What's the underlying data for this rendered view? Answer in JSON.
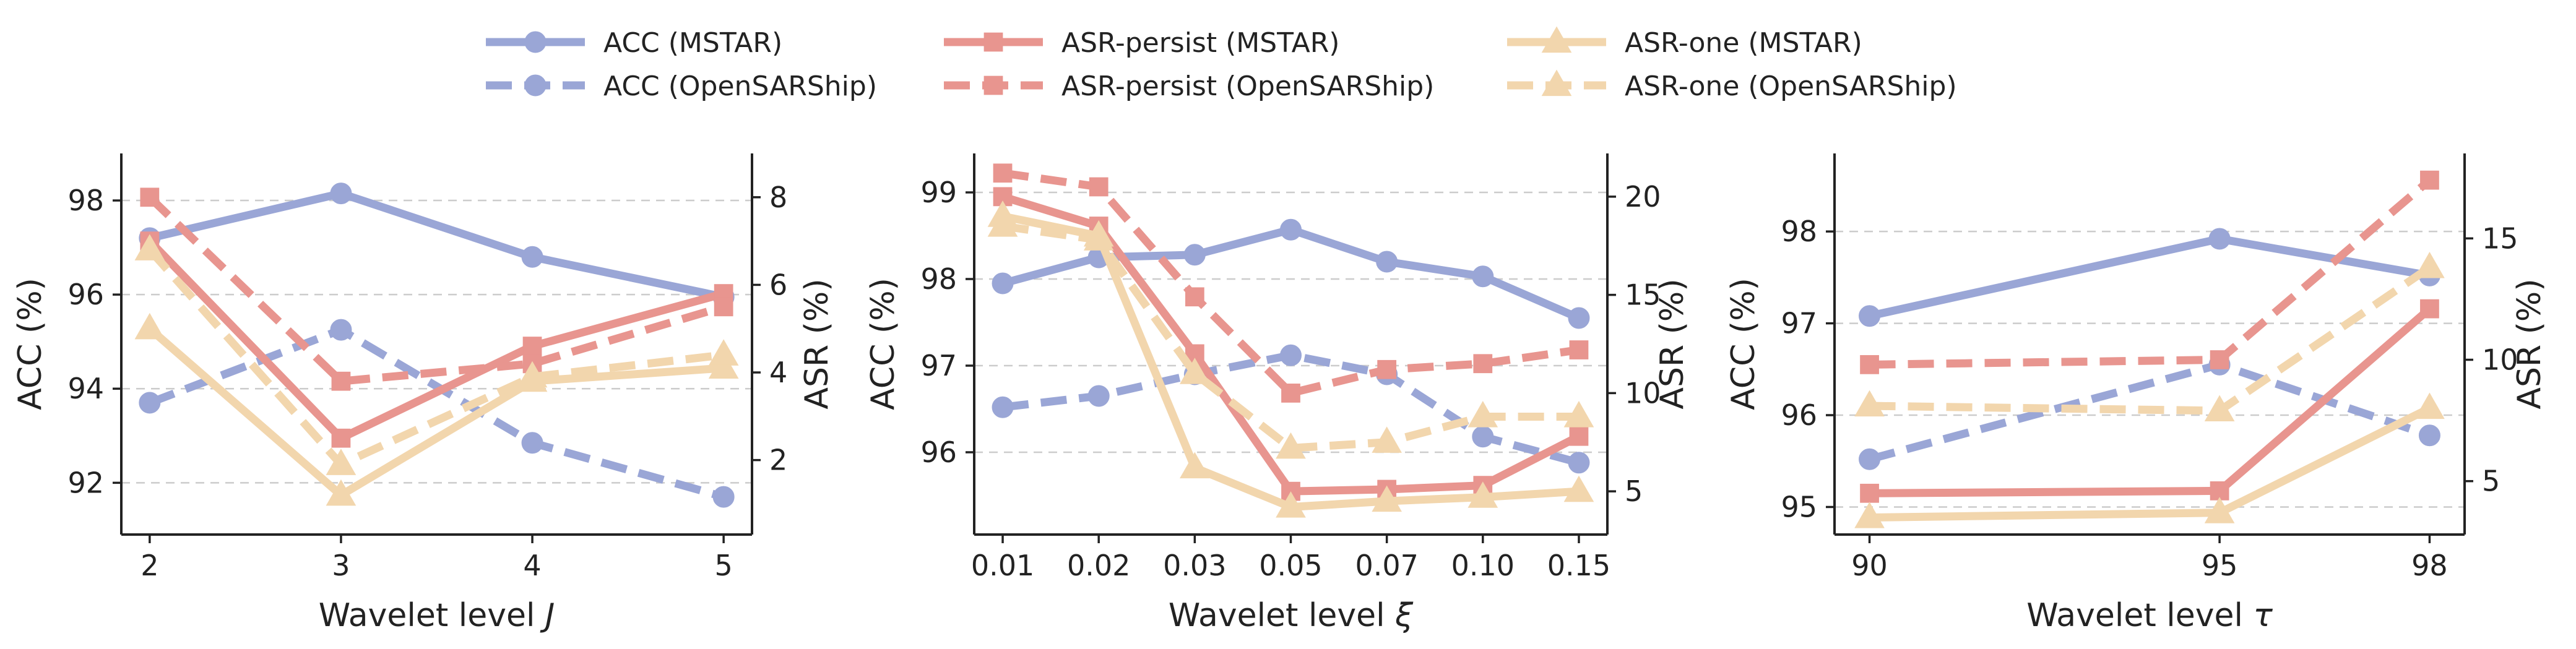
{
  "legend": {
    "entries": [
      {
        "key": "acc_mstar",
        "label": "ACC (MSTAR)",
        "color": "#9aa6d6",
        "dash": false,
        "marker": "circle"
      },
      {
        "key": "acc_open",
        "label": "ACC (OpenSARShip)",
        "color": "#9aa6d6",
        "dash": true,
        "marker": "circle"
      },
      {
        "key": "asrp_mstar",
        "label": "ASR-persist (MSTAR)",
        "color": "#e8958f",
        "dash": false,
        "marker": "square"
      },
      {
        "key": "asrp_open",
        "label": "ASR-persist (OpenSARShip)",
        "color": "#e8958f",
        "dash": true,
        "marker": "square"
      },
      {
        "key": "asro_mstar",
        "label": "ASR-one (MSTAR)",
        "color": "#f2d6ad",
        "dash": false,
        "marker": "triangle"
      },
      {
        "key": "asro_open",
        "label": "ASR-one (OpenSARShip)",
        "color": "#f2d6ad",
        "dash": true,
        "marker": "triangle"
      }
    ]
  },
  "chart_data": [
    {
      "type": "line",
      "xlabel": "Wavelet level",
      "xsymbol": "J",
      "ylabel": "ACC (%)",
      "y2label": "ASR (%)",
      "categories": [
        "2",
        "3",
        "4",
        "5"
      ],
      "ylim": [
        90.9,
        99.0
      ],
      "yticks": [
        92,
        94,
        96,
        98
      ],
      "y2lim": [
        0.3,
        9.0
      ],
      "y2ticks": [
        2,
        4,
        6,
        8
      ],
      "grid": true,
      "series": [
        {
          "key": "acc_mstar",
          "axis": "left",
          "values": [
            97.2,
            98.15,
            96.8,
            95.95
          ]
        },
        {
          "key": "acc_open",
          "axis": "left",
          "values": [
            93.7,
            95.25,
            92.85,
            91.7
          ]
        },
        {
          "key": "asrp_mstar",
          "axis": "right",
          "values": [
            7.0,
            2.5,
            4.6,
            5.8
          ]
        },
        {
          "key": "asrp_open",
          "axis": "right",
          "values": [
            8.0,
            3.8,
            4.2,
            5.5
          ]
        },
        {
          "key": "asro_mstar",
          "axis": "right",
          "values": [
            5.0,
            1.2,
            3.8,
            4.1
          ]
        },
        {
          "key": "asro_open",
          "axis": "right",
          "values": [
            6.8,
            1.9,
            3.9,
            4.4
          ]
        }
      ]
    },
    {
      "type": "line",
      "xlabel": "Wavelet level",
      "xsymbol": "ξ",
      "ylabel": "ACC (%)",
      "y2label": "ASR (%)",
      "categories": [
        "0.01",
        "0.02",
        "0.03",
        "0.05",
        "0.07",
        "0.10",
        "0.15"
      ],
      "ylim": [
        95.05,
        99.45
      ],
      "yticks": [
        95,
        96,
        97,
        98,
        99
      ],
      "y2lim": [
        2.8,
        22.2
      ],
      "y2ticks": [
        5,
        10,
        15,
        20
      ],
      "grid": true,
      "series": [
        {
          "key": "acc_mstar",
          "axis": "left",
          "values": [
            97.95,
            98.25,
            98.28,
            98.57,
            98.2,
            98.03,
            97.55
          ]
        },
        {
          "key": "acc_open",
          "axis": "left",
          "values": [
            96.52,
            96.65,
            96.9,
            97.12,
            96.9,
            96.18,
            95.88
          ]
        },
        {
          "key": "asrp_mstar",
          "axis": "right",
          "values": [
            20.0,
            18.5,
            12.0,
            5.0,
            5.1,
            5.3,
            7.8
          ]
        },
        {
          "key": "asrp_open",
          "axis": "right",
          "values": [
            21.2,
            20.5,
            14.9,
            10.0,
            11.2,
            11.5,
            12.2
          ]
        },
        {
          "key": "asro_mstar",
          "axis": "right",
          "values": [
            19.0,
            18.0,
            6.2,
            4.2,
            4.5,
            4.7,
            5.0
          ]
        },
        {
          "key": "asro_open",
          "axis": "right",
          "values": [
            18.5,
            17.8,
            11.0,
            7.2,
            7.5,
            8.8,
            8.8
          ]
        }
      ]
    },
    {
      "type": "line",
      "xlabel": "Wavelet level",
      "xsymbol": "τ",
      "ylabel": "ACC (%)",
      "y2label": "ASR (%)",
      "categories": [
        "90",
        "95",
        "98"
      ],
      "x": [
        90,
        95,
        98
      ],
      "xlim": [
        89.5,
        98.5
      ],
      "ylim": [
        94.7,
        98.85
      ],
      "yticks": [
        95,
        96,
        97,
        98
      ],
      "y2lim": [
        2.8,
        18.5
      ],
      "y2ticks": [
        5,
        10,
        15
      ],
      "grid": true,
      "series": [
        {
          "key": "acc_mstar",
          "axis": "left",
          "values": [
            97.08,
            97.92,
            97.52
          ]
        },
        {
          "key": "acc_open",
          "axis": "left",
          "values": [
            95.52,
            96.55,
            95.78
          ]
        },
        {
          "key": "asrp_mstar",
          "axis": "right",
          "values": [
            4.5,
            4.6,
            12.1
          ]
        },
        {
          "key": "asrp_open",
          "axis": "right",
          "values": [
            9.8,
            10.0,
            17.4
          ]
        },
        {
          "key": "asro_mstar",
          "axis": "right",
          "values": [
            3.5,
            3.7,
            8.0
          ]
        },
        {
          "key": "asro_open",
          "axis": "right",
          "values": [
            8.1,
            7.9,
            13.8
          ]
        }
      ]
    }
  ]
}
